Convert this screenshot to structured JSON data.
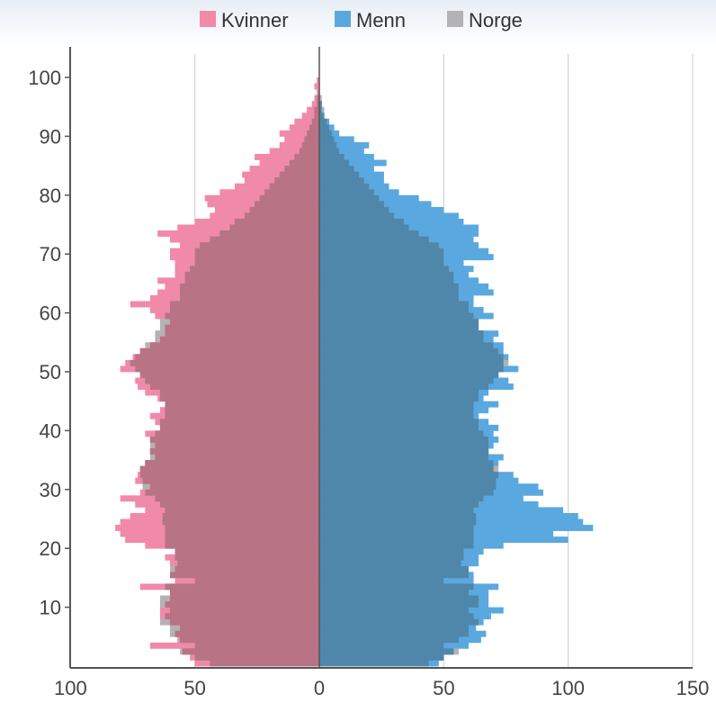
{
  "chart_data": {
    "type": "bar",
    "orientation": "horizontal",
    "title": "",
    "xlabel": "",
    "ylabel": "",
    "xlim": [
      -100,
      150
    ],
    "ylim": [
      0,
      100
    ],
    "x_ticks": [
      -100,
      -50,
      0,
      50,
      100,
      150
    ],
    "x_tick_labels": [
      "100",
      "50",
      "0",
      "50",
      "100",
      "150"
    ],
    "y_ticks": [
      10,
      20,
      30,
      40,
      50,
      60,
      70,
      80,
      90,
      100
    ],
    "y_tick_labels": [
      "10",
      "20",
      "30",
      "40",
      "50",
      "60",
      "70",
      "80",
      "90",
      "100"
    ],
    "grid": "vertical",
    "legend": {
      "position": "top-center",
      "entries": [
        {
          "label": "Kvinner",
          "color": "#f08aa8"
        },
        {
          "label": "Menn",
          "color": "#5aa8e0"
        },
        {
          "label": "Norge",
          "color": "#b3b3b3"
        }
      ]
    },
    "categories_age": [
      0,
      1,
      2,
      3,
      4,
      5,
      6,
      7,
      8,
      9,
      10,
      11,
      12,
      13,
      14,
      15,
      16,
      17,
      18,
      19,
      20,
      21,
      22,
      23,
      24,
      25,
      26,
      27,
      28,
      29,
      30,
      31,
      32,
      33,
      34,
      35,
      36,
      37,
      38,
      39,
      40,
      41,
      42,
      43,
      44,
      45,
      46,
      47,
      48,
      49,
      50,
      51,
      52,
      53,
      54,
      55,
      56,
      57,
      58,
      59,
      60,
      61,
      62,
      63,
      64,
      65,
      66,
      67,
      68,
      69,
      70,
      71,
      72,
      73,
      74,
      75,
      76,
      77,
      78,
      79,
      80,
      81,
      82,
      83,
      84,
      85,
      86,
      87,
      88,
      89,
      90,
      91,
      92,
      93,
      94,
      95,
      96,
      97,
      98,
      99,
      100
    ],
    "series": [
      {
        "name": "Kvinner",
        "color": "#f08aa8",
        "values": [
          50,
          52,
          55,
          68,
          57,
          58,
          56,
          60,
          64,
          64,
          62,
          60,
          60,
          72,
          58,
          60,
          58,
          60,
          62,
          58,
          70,
          78,
          80,
          82,
          80,
          76,
          70,
          74,
          80,
          72,
          68,
          74,
          73,
          72,
          70,
          66,
          68,
          66,
          68,
          70,
          64,
          66,
          68,
          64,
          62,
          65,
          70,
          73,
          74,
          72,
          80,
          78,
          75,
          72,
          68,
          64,
          62,
          62,
          60,
          66,
          68,
          76,
          68,
          65,
          62,
          65,
          58,
          58,
          58,
          60,
          60,
          56,
          60,
          65,
          57,
          50,
          44,
          42,
          45,
          46,
          40,
          34,
          30,
          31,
          28,
          24,
          26,
          20,
          16,
          14,
          16,
          12,
          10,
          7,
          5,
          3,
          2,
          1,
          2,
          1,
          0
        ]
      },
      {
        "name": "Menn",
        "color": "#5aa8e0",
        "values": [
          48,
          50,
          54,
          60,
          65,
          67,
          63,
          66,
          69,
          74,
          68,
          68,
          68,
          72,
          62,
          62,
          60,
          64,
          64,
          66,
          74,
          100,
          94,
          110,
          106,
          104,
          98,
          88,
          82,
          90,
          88,
          80,
          78,
          70,
          72,
          74,
          68,
          70,
          72,
          70,
          72,
          68,
          64,
          68,
          72,
          66,
          68,
          78,
          76,
          72,
          80,
          74,
          76,
          74,
          74,
          70,
          72,
          64,
          64,
          70,
          66,
          62,
          62,
          70,
          68,
          64,
          60,
          62,
          58,
          70,
          68,
          64,
          62,
          64,
          64,
          58,
          56,
          50,
          45,
          40,
          32,
          28,
          26,
          26,
          22,
          27,
          22,
          18,
          20,
          14,
          8,
          6,
          4,
          2,
          1,
          1,
          0,
          0,
          0,
          0,
          0
        ]
      },
      {
        "name": "Norge",
        "color": "#b3b3b3",
        "values": [
          44,
          50,
          56,
          50,
          56,
          60,
          60,
          64,
          62,
          60,
          64,
          64,
          60,
          62,
          50,
          60,
          60,
          57,
          58,
          58,
          62,
          62,
          62,
          62,
          63,
          63,
          62,
          64,
          66,
          70,
          71,
          71,
          72,
          72,
          70,
          68,
          68,
          68,
          68,
          66,
          64,
          64,
          62,
          62,
          62,
          64,
          64,
          68,
          70,
          72,
          74,
          76,
          74,
          72,
          70,
          66,
          66,
          64,
          64,
          62,
          60,
          60,
          56,
          56,
          56,
          54,
          54,
          52,
          50,
          50,
          50,
          48,
          44,
          40,
          36,
          34,
          30,
          28,
          26,
          24,
          22,
          20,
          18,
          16,
          14,
          12,
          10,
          8,
          7,
          6,
          5,
          4,
          3,
          2,
          2,
          1,
          1,
          0,
          0,
          0,
          0
        ]
      }
    ]
  }
}
